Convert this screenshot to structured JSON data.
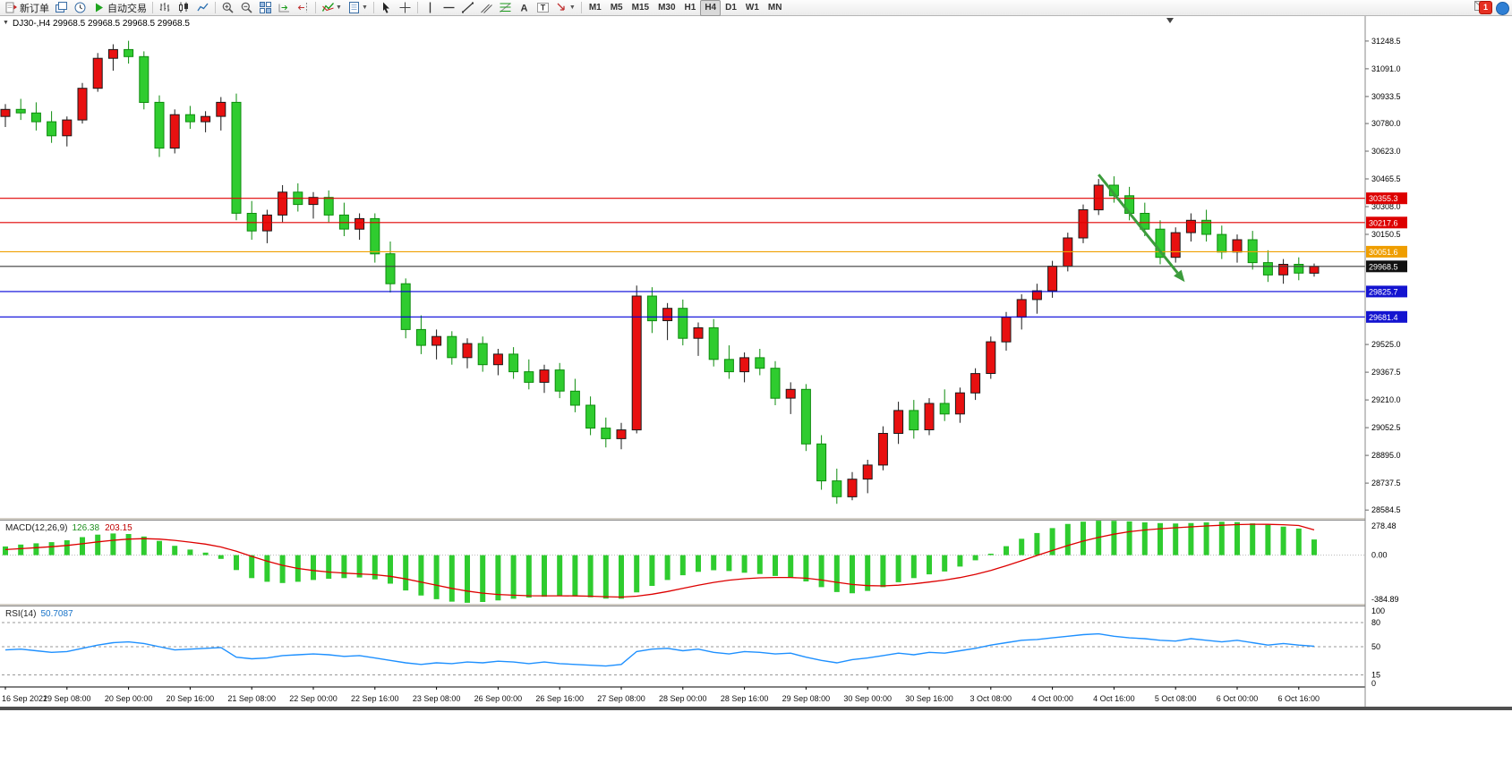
{
  "toolbar": {
    "buttons": [
      {
        "name": "new-order",
        "icon": "new-order",
        "label": "新订单"
      },
      {
        "name": "chart-profiles",
        "icon": "profiles"
      },
      {
        "name": "history-center",
        "icon": "clock"
      },
      {
        "name": "auto-trading",
        "icon": "play",
        "label": "自动交易"
      },
      {
        "sep": true
      },
      {
        "name": "bar-chart",
        "icon": "bars"
      },
      {
        "name": "candlestick-chart",
        "icon": "candles"
      },
      {
        "name": "line-chart",
        "icon": "line"
      },
      {
        "sep": true
      },
      {
        "name": "zoom-in",
        "icon": "zoom-in"
      },
      {
        "name": "zoom-out",
        "icon": "zoom-out"
      },
      {
        "name": "tile-windows",
        "icon": "tile"
      },
      {
        "name": "auto-scroll",
        "icon": "auto-scroll"
      },
      {
        "name": "chart-shift",
        "icon": "shift"
      },
      {
        "sep": true
      },
      {
        "name": "indicators",
        "icon": "indicators",
        "caret": true
      },
      {
        "name": "templates",
        "icon": "template",
        "caret": true
      },
      {
        "sep": true
      },
      {
        "name": "cursor",
        "icon": "cursor"
      },
      {
        "name": "crosshair",
        "icon": "crosshair"
      },
      {
        "sep": true
      },
      {
        "name": "vertical-line",
        "icon": "vline"
      },
      {
        "name": "horizontal-line",
        "icon": "hline"
      },
      {
        "name": "trendline",
        "icon": "trend"
      },
      {
        "name": "equidistant-channel",
        "icon": "channel"
      },
      {
        "name": "fibonacci",
        "icon": "fibo"
      },
      {
        "name": "text",
        "icon": "text-a"
      },
      {
        "name": "text-label",
        "icon": "text-t"
      },
      {
        "name": "arrows",
        "icon": "arrow-tool",
        "caret": true
      },
      {
        "sep": true
      }
    ],
    "timeframes": [
      "M1",
      "M5",
      "M15",
      "M30",
      "H1",
      "H4",
      "D1",
      "W1",
      "MN"
    ],
    "active_timeframe": "H4",
    "notification_count": "1"
  },
  "chart": {
    "header_line": "DJ30-,H4 29968.5 29968.5 29968.5 29968.5",
    "oneclick_arrow": "▼"
  },
  "chart_data": {
    "type": "candlestick",
    "symbol": "DJ30-",
    "period": "H4",
    "colors": {
      "up": "#e81010",
      "up_outline": "#1a1a1a",
      "down": "#2fcc2f",
      "down_outline": "#0e8c0e",
      "background": "#ffffff"
    },
    "ohlc": [
      [
        30820,
        30890,
        30760,
        30860
      ],
      [
        30860,
        30920,
        30800,
        30840
      ],
      [
        30840,
        30900,
        30740,
        30790
      ],
      [
        30790,
        30850,
        30670,
        30710
      ],
      [
        30710,
        30820,
        30650,
        30800
      ],
      [
        30800,
        31010,
        30780,
        30980
      ],
      [
        30980,
        31180,
        30960,
        31150
      ],
      [
        31150,
        31230,
        31080,
        31200
      ],
      [
        31200,
        31250,
        31120,
        31160
      ],
      [
        31160,
        31190,
        30860,
        30900
      ],
      [
        30900,
        30940,
        30590,
        30640
      ],
      [
        30640,
        30860,
        30610,
        30830
      ],
      [
        30830,
        30880,
        30750,
        30790
      ],
      [
        30790,
        30850,
        30730,
        30820
      ],
      [
        30820,
        30930,
        30740,
        30900
      ],
      [
        30900,
        30950,
        30230,
        30270
      ],
      [
        30270,
        30340,
        30120,
        30170
      ],
      [
        30170,
        30290,
        30100,
        30260
      ],
      [
        30260,
        30430,
        30220,
        30390
      ],
      [
        30390,
        30440,
        30280,
        30320
      ],
      [
        30320,
        30390,
        30240,
        30360
      ],
      [
        30360,
        30400,
        30220,
        30260
      ],
      [
        30260,
        30330,
        30140,
        30180
      ],
      [
        30180,
        30270,
        30120,
        30240
      ],
      [
        30240,
        30270,
        29990,
        30040
      ],
      [
        30040,
        30110,
        29820,
        29870
      ],
      [
        29870,
        29900,
        29560,
        29610
      ],
      [
        29610,
        29690,
        29470,
        29520
      ],
      [
        29520,
        29610,
        29440,
        29570
      ],
      [
        29570,
        29600,
        29410,
        29450
      ],
      [
        29450,
        29560,
        29390,
        29530
      ],
      [
        29530,
        29570,
        29370,
        29410
      ],
      [
        29410,
        29500,
        29350,
        29470
      ],
      [
        29470,
        29510,
        29330,
        29370
      ],
      [
        29370,
        29440,
        29270,
        29310
      ],
      [
        29310,
        29410,
        29250,
        29380
      ],
      [
        29380,
        29420,
        29220,
        29260
      ],
      [
        29260,
        29330,
        29140,
        29180
      ],
      [
        29180,
        29230,
        29010,
        29050
      ],
      [
        29050,
        29110,
        28940,
        28990
      ],
      [
        28990,
        29080,
        28930,
        29040
      ],
      [
        29040,
        29860,
        29020,
        29800
      ],
      [
        29800,
        29850,
        29590,
        29660
      ],
      [
        29660,
        29760,
        29550,
        29730
      ],
      [
        29730,
        29780,
        29520,
        29560
      ],
      [
        29560,
        29650,
        29460,
        29620
      ],
      [
        29620,
        29670,
        29400,
        29440
      ],
      [
        29440,
        29520,
        29330,
        29370
      ],
      [
        29370,
        29480,
        29310,
        29450
      ],
      [
        29450,
        29500,
        29350,
        29390
      ],
      [
        29390,
        29430,
        29180,
        29220
      ],
      [
        29220,
        29310,
        29130,
        29270
      ],
      [
        29270,
        29300,
        28920,
        28960
      ],
      [
        28960,
        29010,
        28700,
        28750
      ],
      [
        28750,
        28820,
        28620,
        28660
      ],
      [
        28660,
        28800,
        28640,
        28760
      ],
      [
        28760,
        28870,
        28680,
        28840
      ],
      [
        28840,
        29060,
        28810,
        29020
      ],
      [
        29020,
        29200,
        28960,
        29150
      ],
      [
        29150,
        29210,
        28990,
        29040
      ],
      [
        29040,
        29220,
        29010,
        29190
      ],
      [
        29190,
        29270,
        29090,
        29130
      ],
      [
        29130,
        29280,
        29080,
        29250
      ],
      [
        29250,
        29390,
        29210,
        29360
      ],
      [
        29360,
        29570,
        29330,
        29540
      ],
      [
        29540,
        29710,
        29490,
        29680
      ],
      [
        29680,
        29810,
        29610,
        29780
      ],
      [
        29780,
        29870,
        29700,
        29830
      ],
      [
        29830,
        30000,
        29790,
        29970
      ],
      [
        29970,
        30160,
        29940,
        30130
      ],
      [
        30130,
        30320,
        30100,
        30290
      ],
      [
        30290,
        30465,
        30260,
        30430
      ],
      [
        30430,
        30480,
        30330,
        30370
      ],
      [
        30370,
        30420,
        30230,
        30270
      ],
      [
        30270,
        30330,
        30140,
        30180
      ],
      [
        30180,
        30230,
        29980,
        30020
      ],
      [
        30020,
        30190,
        29990,
        30160
      ],
      [
        30160,
        30270,
        30110,
        30230
      ],
      [
        30230,
        30290,
        30110,
        30150
      ],
      [
        30150,
        30200,
        30010,
        30050
      ],
      [
        30050,
        30150,
        29990,
        30120
      ],
      [
        30120,
        30170,
        29950,
        29990
      ],
      [
        29990,
        30060,
        29880,
        29920
      ],
      [
        29920,
        30010,
        29870,
        29980
      ],
      [
        29980,
        30020,
        29890,
        29930
      ],
      [
        29930,
        29985,
        29910,
        29968.5
      ]
    ],
    "x_labels": [
      "16 Sep 2022",
      "19 Sep 08:00",
      "20 Sep 00:00",
      "20 Sep 16:00",
      "21 Sep 08:00",
      "22 Sep 00:00",
      "22 Sep 16:00",
      "23 Sep 08:00",
      "26 Sep 00:00",
      "26 Sep 16:00",
      "27 Sep 08:00",
      "28 Sep 00:00",
      "28 Sep 16:00",
      "29 Sep 08:00",
      "30 Sep 00:00",
      "30 Sep 16:00",
      "3 Oct 08:00",
      "4 Oct 00:00",
      "4 Oct 16:00",
      "5 Oct 08:00",
      "6 Oct 00:00",
      "6 Oct 16:00"
    ],
    "label_every_bars": 4,
    "y_axis": {
      "min": 28545,
      "max": 31390,
      "ticks": [
        "31248.5",
        "31091.0",
        "30933.5",
        "30780.0",
        "30623.0",
        "30465.5",
        "30308.0",
        "30150.5",
        "29525.0",
        "29367.5",
        "29210.0",
        "29052.5",
        "28895.0",
        "28737.5",
        "28584.5"
      ]
    },
    "price_lines": [
      {
        "price": 30355.3,
        "label": "30355.3",
        "color": "#e00000",
        "badge": "#dd0000"
      },
      {
        "price": 30217.6,
        "label": "30217.6",
        "color": "#e00000",
        "badge": "#dd0000"
      },
      {
        "price": 30051.6,
        "label": "30051.6",
        "color": "#f0a000",
        "badge": "#ef9e00"
      },
      {
        "price": 29968.5,
        "label": "29968.5",
        "color": "#3c3c3c",
        "badge": "#111111"
      },
      {
        "price": 29825.7,
        "label": "29825.7",
        "color": "#0000d8",
        "badge": "#1414d0"
      },
      {
        "price": 29681.4,
        "label": "29681.4",
        "color": "#0000d8",
        "badge": "#1414d0"
      }
    ],
    "trend_arrow": {
      "from_bar": 71,
      "from_price": 30490,
      "to_bar": 76.6,
      "to_price": 29880,
      "color": "#3c9c3c"
    },
    "macd": {
      "name": "MACD(12,26,9)",
      "value": "126.38",
      "signal_value": "203.15",
      "scale_max": 278.48,
      "scale_min": -384.89,
      "ticks": [
        "278.48",
        "0.00",
        "-384.89"
      ],
      "hist_color": "#2fcc2f",
      "signal_color": "#dd0000",
      "histogram": [
        70,
        85,
        95,
        105,
        120,
        145,
        165,
        175,
        170,
        150,
        115,
        75,
        45,
        20,
        -30,
        -120,
        -185,
        -215,
        -225,
        -215,
        -200,
        -190,
        -185,
        -180,
        -195,
        -230,
        -285,
        -325,
        -355,
        -375,
        -384,
        -378,
        -365,
        -352,
        -342,
        -335,
        -330,
        -332,
        -340,
        -350,
        -352,
        -300,
        -248,
        -200,
        -162,
        -135,
        -122,
        -128,
        -142,
        -152,
        -168,
        -178,
        -212,
        -258,
        -298,
        -308,
        -288,
        -258,
        -218,
        -185,
        -155,
        -132,
        -92,
        -42,
        12,
        72,
        132,
        178,
        218,
        252,
        270,
        278,
        276,
        272,
        264,
        258,
        255,
        258,
        264,
        270,
        266,
        256,
        244,
        230,
        214,
        126.38
      ],
      "signal": [
        45,
        52,
        60,
        68,
        78,
        92,
        107,
        120,
        129,
        133,
        129,
        119,
        105,
        89,
        66,
        31,
        -10,
        -49,
        -82,
        -107,
        -124,
        -136,
        -145,
        -151,
        -158,
        -171,
        -192,
        -217,
        -243,
        -268,
        -290,
        -306,
        -317,
        -323,
        -327,
        -328,
        -328,
        -329,
        -331,
        -335,
        -338,
        -331,
        -315,
        -293,
        -268,
        -243,
        -220,
        -202,
        -190,
        -183,
        -180,
        -180,
        -186,
        -200,
        -219,
        -236,
        -246,
        -248,
        -242,
        -231,
        -217,
        -201,
        -181,
        -155,
        -123,
        -86,
        -45,
        -3,
        38,
        77,
        113,
        144,
        169,
        189,
        203,
        213,
        221,
        228,
        235,
        241,
        246,
        249,
        248,
        245,
        239,
        203.15
      ]
    },
    "rsi": {
      "name": "RSI(14)",
      "value": "50.7087",
      "scale_max": 100,
      "scale_min": 0,
      "levels": [
        80,
        50,
        15
      ],
      "ticks": [
        "100",
        "80",
        "50",
        "15",
        "0"
      ],
      "color": "#1e90ff",
      "values": [
        46,
        47,
        45,
        43,
        44,
        48,
        52,
        55,
        56,
        54,
        50,
        46,
        47,
        48,
        49,
        37,
        35,
        36,
        39,
        40,
        41,
        40,
        38,
        39,
        36,
        33,
        30,
        28,
        30,
        29,
        31,
        30,
        32,
        31,
        29,
        31,
        29,
        28,
        27,
        26,
        28,
        44,
        47,
        48,
        45,
        47,
        43,
        41,
        44,
        43,
        41,
        42,
        37,
        33,
        30,
        34,
        36,
        39,
        42,
        40,
        43,
        42,
        45,
        48,
        52,
        55,
        58,
        59,
        61,
        63,
        65,
        66,
        63,
        61,
        60,
        58,
        57,
        60,
        58,
        56,
        58,
        55,
        52,
        54,
        52,
        50.71
      ]
    }
  }
}
